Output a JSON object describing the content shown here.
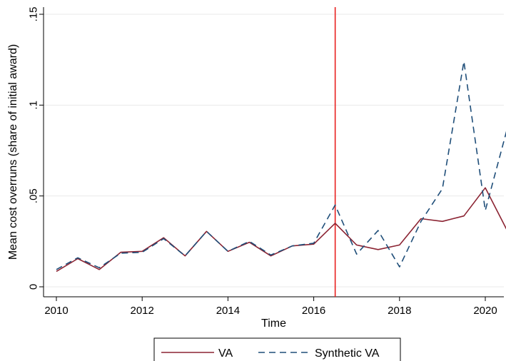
{
  "chart_data": {
    "type": "line",
    "xlabel": "Time",
    "ylabel": "Mean cost overruns (share of initial award)",
    "xlim": [
      2010,
      2020.5
    ],
    "ylim": [
      0,
      0.15
    ],
    "x_ticks": [
      {
        "value": 2010,
        "label": "2010"
      },
      {
        "value": 2012,
        "label": "2012"
      },
      {
        "value": 2014,
        "label": "2014"
      },
      {
        "value": 2016,
        "label": "2016"
      },
      {
        "value": 2018,
        "label": "2018"
      },
      {
        "value": 2020,
        "label": "2020"
      }
    ],
    "y_ticks": [
      {
        "value": 0,
        "label": "0"
      },
      {
        "value": 0.05,
        "label": ".05"
      },
      {
        "value": 0.1,
        "label": ".1"
      },
      {
        "value": 0.15,
        "label": ".15"
      }
    ],
    "grid": "horizontal",
    "legend_position": "bottom",
    "treatment_line": {
      "x": 2016.5,
      "color": "#e8201e"
    },
    "x": [
      2010,
      2010.5,
      2011,
      2011.5,
      2012,
      2012.5,
      2013,
      2013.5,
      2014,
      2014.5,
      2015,
      2015.5,
      2016,
      2016.5,
      2017,
      2017.5,
      2018,
      2018.5,
      2019,
      2019.5,
      2020,
      2020.5
    ],
    "series": [
      {
        "name": "VA",
        "color": "#8b2332",
        "dash": "solid",
        "values": [
          0.0085,
          0.0155,
          0.0095,
          0.019,
          0.0195,
          0.027,
          0.017,
          0.0305,
          0.0195,
          0.0245,
          0.017,
          0.0225,
          0.0235,
          0.035,
          0.023,
          0.0205,
          0.023,
          0.0375,
          0.036,
          0.039,
          0.0545,
          0.0315
        ]
      },
      {
        "name": "Synthetic VA",
        "color": "#1f4e79",
        "dash": "dashed",
        "values": [
          0.0095,
          0.016,
          0.0105,
          0.0185,
          0.019,
          0.0265,
          0.017,
          0.0305,
          0.0195,
          0.025,
          0.0175,
          0.0225,
          0.024,
          0.045,
          0.018,
          0.031,
          0.011,
          0.036,
          0.054,
          0.124,
          0.042,
          0.086
        ]
      }
    ]
  }
}
